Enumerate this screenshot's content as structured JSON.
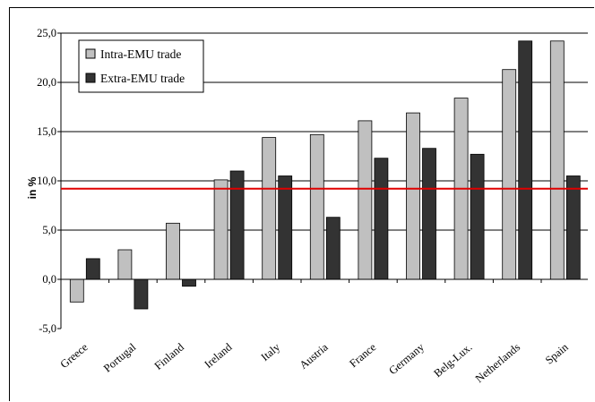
{
  "chart_data": {
    "type": "bar",
    "title": "",
    "xlabel": "",
    "ylabel": "in %",
    "ylim": [
      -5,
      25
    ],
    "yticks": [
      "-5,0",
      "0,0",
      "5,0",
      "10,0",
      "15,0",
      "20,0",
      "25,0"
    ],
    "grid": true,
    "legend_position": "top-left",
    "categories": [
      "Greece",
      "Portugal",
      "Finland",
      "Ireland",
      "Italy",
      "Austria",
      "France",
      "Germany",
      "Belg-Lux.",
      "Netherlands",
      "Spain"
    ],
    "series": [
      {
        "name": "Intra-EMU trade",
        "color": "#c0c0c0",
        "values": [
          -2.3,
          3.0,
          5.7,
          10.1,
          14.4,
          14.7,
          16.1,
          16.9,
          18.4,
          21.3,
          24.2
        ]
      },
      {
        "name": "Extra-EMU trade",
        "color": "#333333",
        "values": [
          2.1,
          -3.0,
          -0.7,
          11.0,
          10.5,
          6.3,
          12.3,
          13.3,
          12.7,
          24.2,
          10.5
        ]
      }
    ],
    "reference_line": {
      "value": 9.2,
      "color": "#e00000"
    }
  }
}
